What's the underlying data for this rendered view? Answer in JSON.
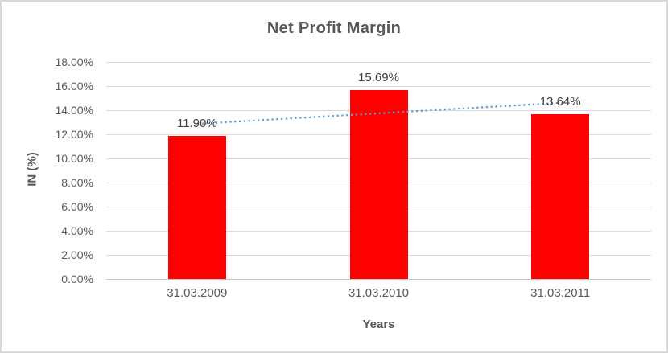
{
  "chart_data": {
    "type": "bar",
    "title": "Net Profit Margin",
    "categories": [
      "31.03.2009",
      "31.03.2010",
      "31.03.2011"
    ],
    "values": [
      11.9,
      15.69,
      13.64
    ],
    "data_labels": [
      "11.90%",
      "15.69%",
      "13.64%"
    ],
    "xlabel": "Years",
    "ylabel": "IN (%)",
    "ylim": [
      0,
      18
    ],
    "ytick_step": 2,
    "ytick_labels": [
      "0.00%",
      "2.00%",
      "4.00%",
      "6.00%",
      "8.00%",
      "10.00%",
      "12.00%",
      "14.00%",
      "16.00%",
      "18.00%"
    ],
    "grid": true,
    "legend": "none",
    "trendline": {
      "type": "linear",
      "style": "dotted",
      "start_value": 12.87,
      "end_value": 14.61
    }
  },
  "colors": {
    "bar": "#ff0000",
    "trendline": "#5b9bd5",
    "gridline": "#d9d9d9",
    "axis_line": "#c6c6c6",
    "title_text": "#595959",
    "label_text": "#404040",
    "border": "#d9d9d9",
    "background": "#ffffff"
  }
}
